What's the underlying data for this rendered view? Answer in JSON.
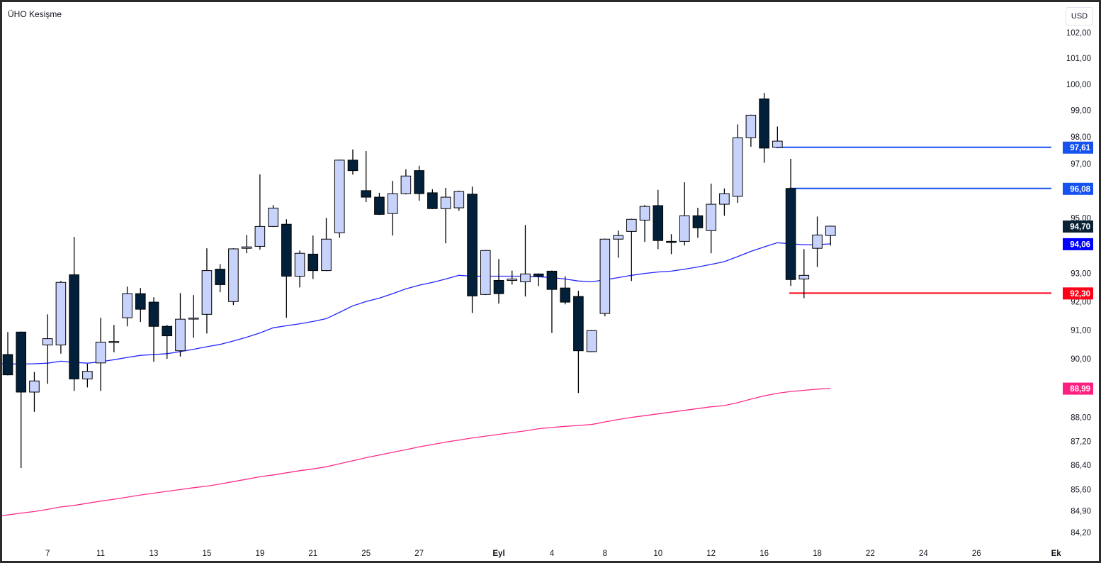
{
  "title": "ÜHO Kesişme",
  "currency_button": "USD",
  "colors": {
    "bull_fill": "#c8d3fc",
    "bear_fill": "#02203a",
    "ma_fast": "#2424ff",
    "ma_slow": "#ff2b8c",
    "resistance": "#1652f0",
    "support": "#ff0018",
    "last_price_bg": "#0b2235"
  },
  "chart_data": {
    "type": "candlestick",
    "title": "ÜHO Kesişme",
    "yscale": "log",
    "ylim": [
      84.0,
      102.3
    ],
    "y_ticks": [
      "102,00",
      "101,00",
      "100,00",
      "99,00",
      "98,00",
      "97,00",
      "95,00",
      "93,00",
      "92,00",
      "91,00",
      "90,00",
      "88,00",
      "87,20",
      "86,40",
      "85,60",
      "84,90",
      "84,20"
    ],
    "x_ticks": [
      {
        "label": "7",
        "index": 3,
        "bold": false
      },
      {
        "label": "11",
        "index": 7,
        "bold": false
      },
      {
        "label": "13",
        "index": 11,
        "bold": false
      },
      {
        "label": "15",
        "index": 15,
        "bold": false
      },
      {
        "label": "19",
        "index": 19,
        "bold": false
      },
      {
        "label": "21",
        "index": 23,
        "bold": false
      },
      {
        "label": "25",
        "index": 27,
        "bold": false
      },
      {
        "label": "27",
        "index": 31,
        "bold": false
      },
      {
        "label": "Eyl",
        "index": 37,
        "bold": true
      },
      {
        "label": "4",
        "index": 41,
        "bold": false
      },
      {
        "label": "8",
        "index": 45,
        "bold": false
      },
      {
        "label": "10",
        "index": 49,
        "bold": false
      },
      {
        "label": "12",
        "index": 53,
        "bold": false
      },
      {
        "label": "16",
        "index": 57,
        "bold": false
      },
      {
        "label": "18",
        "index": 61,
        "bold": false
      },
      {
        "label": "22",
        "index": 65,
        "bold": false
      },
      {
        "label": "24",
        "index": 69,
        "bold": false
      },
      {
        "label": "26",
        "index": 73,
        "bold": false
      },
      {
        "label": "Ek",
        "index": 79,
        "bold": true
      }
    ],
    "ohlc_columns": [
      "open",
      "high",
      "low",
      "close"
    ],
    "ohlc": [
      [
        90.15,
        90.93,
        89.43,
        89.45
      ],
      [
        90.93,
        90.95,
        86.31,
        88.86
      ],
      [
        88.86,
        89.55,
        88.19,
        89.24
      ],
      [
        90.48,
        91.55,
        89.14,
        90.7
      ],
      [
        90.48,
        92.73,
        90.18,
        92.68
      ],
      [
        92.95,
        94.31,
        88.9,
        89.31
      ],
      [
        89.31,
        89.83,
        89.02,
        89.57
      ],
      [
        89.86,
        91.43,
        88.9,
        90.58
      ],
      [
        90.58,
        91.18,
        90.23,
        90.6
      ],
      [
        91.43,
        92.53,
        91.13,
        92.28
      ],
      [
        92.28,
        92.48,
        91.28,
        91.73
      ],
      [
        91.98,
        92.15,
        89.9,
        91.13
      ],
      [
        91.13,
        91.18,
        90.0,
        90.8
      ],
      [
        90.28,
        92.3,
        90.08,
        91.38
      ],
      [
        91.4,
        92.23,
        90.73,
        91.42
      ],
      [
        91.55,
        93.9,
        90.88,
        93.1
      ],
      [
        93.15,
        93.33,
        92.33,
        92.6
      ],
      [
        92.0,
        93.9,
        91.88,
        93.88
      ],
      [
        93.9,
        94.38,
        93.72,
        93.95
      ],
      [
        93.97,
        96.6,
        93.85,
        94.69
      ],
      [
        94.69,
        95.47,
        94.67,
        95.36
      ],
      [
        94.77,
        94.95,
        91.43,
        92.9
      ],
      [
        92.9,
        93.82,
        92.5,
        93.72
      ],
      [
        93.69,
        94.36,
        92.8,
        93.1
      ],
      [
        93.1,
        95.0,
        93.08,
        94.23
      ],
      [
        94.46,
        97.15,
        94.28,
        97.13
      ],
      [
        97.13,
        97.53,
        96.59,
        96.74
      ],
      [
        96.0,
        97.47,
        95.58,
        95.76
      ],
      [
        95.76,
        95.92,
        95.11,
        95.13
      ],
      [
        95.16,
        96.36,
        94.36,
        95.89
      ],
      [
        95.89,
        96.79,
        95.86,
        96.54
      ],
      [
        96.74,
        96.92,
        95.63,
        95.89
      ],
      [
        95.92,
        96.05,
        95.32,
        95.34
      ],
      [
        95.34,
        96.1,
        94.08,
        95.76
      ],
      [
        95.37,
        96.0,
        95.26,
        95.97
      ],
      [
        95.87,
        96.15,
        91.6,
        92.2
      ],
      [
        92.25,
        93.84,
        92.23,
        93.82
      ],
      [
        92.75,
        93.51,
        91.93,
        92.28
      ],
      [
        92.75,
        93.1,
        92.6,
        92.8
      ],
      [
        92.7,
        94.74,
        92.18,
        92.98
      ],
      [
        92.98,
        93.0,
        92.55,
        92.9
      ],
      [
        93.08,
        93.1,
        90.9,
        92.43
      ],
      [
        92.48,
        92.9,
        91.9,
        91.98
      ],
      [
        92.18,
        92.38,
        88.83,
        90.28
      ],
      [
        90.25,
        91.0,
        90.23,
        90.98
      ],
      [
        91.58,
        94.25,
        91.48,
        94.23
      ],
      [
        94.23,
        94.54,
        93.56,
        94.36
      ],
      [
        94.51,
        94.97,
        92.73,
        94.95
      ],
      [
        94.92,
        95.47,
        94.13,
        95.42
      ],
      [
        95.45,
        96.03,
        93.87,
        94.18
      ],
      [
        94.15,
        94.41,
        93.69,
        94.13
      ],
      [
        94.15,
        96.31,
        94.0,
        95.08
      ],
      [
        95.08,
        95.37,
        94.28,
        94.64
      ],
      [
        94.54,
        96.26,
        93.72,
        95.5
      ],
      [
        95.5,
        96.08,
        95.08,
        95.89
      ],
      [
        95.79,
        98.47,
        95.55,
        97.97
      ],
      [
        97.97,
        98.84,
        97.63,
        98.82
      ],
      [
        99.44,
        99.67,
        97.03,
        97.58
      ],
      [
        97.61,
        98.39,
        97.59,
        97.84
      ],
      [
        96.08,
        97.18,
        92.55,
        92.78
      ],
      [
        92.8,
        93.87,
        92.12,
        92.93
      ],
      [
        93.9,
        95.05,
        93.23,
        94.38
      ],
      [
        94.36,
        94.72,
        94.0,
        94.7
      ]
    ],
    "series": [
      {
        "name": "MA fast",
        "color": "#2424ff",
        "values": [
          89.83,
          89.82,
          89.83,
          89.85,
          89.92,
          89.88,
          89.85,
          89.9,
          89.97,
          90.05,
          90.12,
          90.15,
          90.18,
          90.25,
          90.33,
          90.42,
          90.5,
          90.62,
          90.75,
          90.9,
          91.08,
          91.15,
          91.22,
          91.3,
          91.4,
          91.62,
          91.85,
          92.0,
          92.12,
          92.28,
          92.45,
          92.58,
          92.68,
          92.8,
          92.93,
          92.9,
          92.9,
          92.9,
          92.9,
          92.9,
          92.88,
          92.85,
          92.8,
          92.73,
          92.7,
          92.77,
          92.85,
          92.93,
          93.0,
          93.05,
          93.08,
          93.15,
          93.23,
          93.32,
          93.42,
          93.6,
          93.79,
          93.95,
          94.1,
          94.06,
          94.03,
          94.03,
          94.06
        ]
      },
      {
        "name": "MA slow",
        "color": "#ff2b8c",
        "values": [
          84.77,
          84.83,
          84.88,
          84.95,
          85.03,
          85.08,
          85.15,
          85.22,
          85.28,
          85.35,
          85.42,
          85.48,
          85.54,
          85.6,
          85.66,
          85.71,
          85.78,
          85.86,
          85.94,
          86.02,
          86.08,
          86.15,
          86.22,
          86.28,
          86.35,
          86.45,
          86.55,
          86.65,
          86.74,
          86.83,
          86.92,
          87.01,
          87.09,
          87.17,
          87.24,
          87.31,
          87.37,
          87.43,
          87.49,
          87.55,
          87.62,
          87.66,
          87.7,
          87.73,
          87.76,
          87.85,
          87.93,
          88.0,
          88.06,
          88.12,
          88.18,
          88.24,
          88.3,
          88.36,
          88.4,
          88.5,
          88.62,
          88.73,
          88.82,
          88.88,
          88.92,
          88.96,
          88.99
        ]
      }
    ],
    "levels": [
      {
        "value": 97.61,
        "label": "97,61",
        "color": "#1652f0",
        "from_index": 58
      },
      {
        "value": 96.08,
        "label": "96,08",
        "color": "#1652f0",
        "from_index": 59
      },
      {
        "value": 92.3,
        "label": "92,30",
        "color": "#ff0018",
        "from_index": 59
      }
    ],
    "price_labels": [
      {
        "value": 94.7,
        "label": "94,70",
        "color": "#0b2235",
        "name": "last-price-label"
      },
      {
        "value": 94.06,
        "label": "94,06",
        "color": "#0000ff",
        "name": "ma-fast-price-label"
      },
      {
        "value": 88.99,
        "label": "88,99",
        "color": "#ff1f80",
        "name": "ma-slow-price-label"
      }
    ]
  }
}
